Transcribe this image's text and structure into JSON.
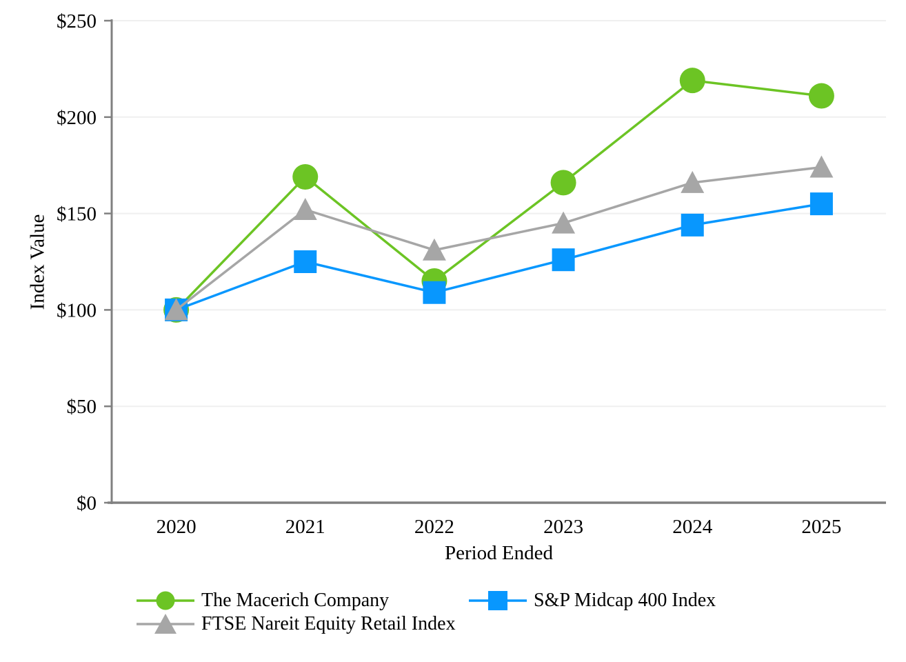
{
  "chart_data": {
    "type": "line",
    "categories": [
      "2020",
      "2021",
      "2022",
      "2023",
      "2024",
      "2025"
    ],
    "series": [
      {
        "name": "The Macerich Company",
        "marker": "circle",
        "color": "#6CC424",
        "values": [
          100,
          169,
          115,
          166,
          219,
          211
        ]
      },
      {
        "name": "S&P Midcap 400 Index",
        "marker": "square",
        "color": "#0897FE",
        "values": [
          100,
          125,
          109,
          126,
          144,
          155
        ]
      },
      {
        "name": "FTSE Nareit Equity Retail Index",
        "marker": "triangle",
        "color": "#A6A6A6",
        "values": [
          100,
          152,
          131,
          145,
          166,
          174
        ]
      }
    ],
    "title": "",
    "xlabel": "Period Ended",
    "ylabel": "Index Value",
    "ylim": [
      0,
      250
    ],
    "ytick_step": 50,
    "ytick_labels": [
      "$0",
      "$50",
      "$100",
      "$150",
      "$200",
      "$250"
    ],
    "grid": true,
    "legend_position": "bottom",
    "axis_color": "#808080",
    "gridline_color": "#EFEFEF"
  }
}
